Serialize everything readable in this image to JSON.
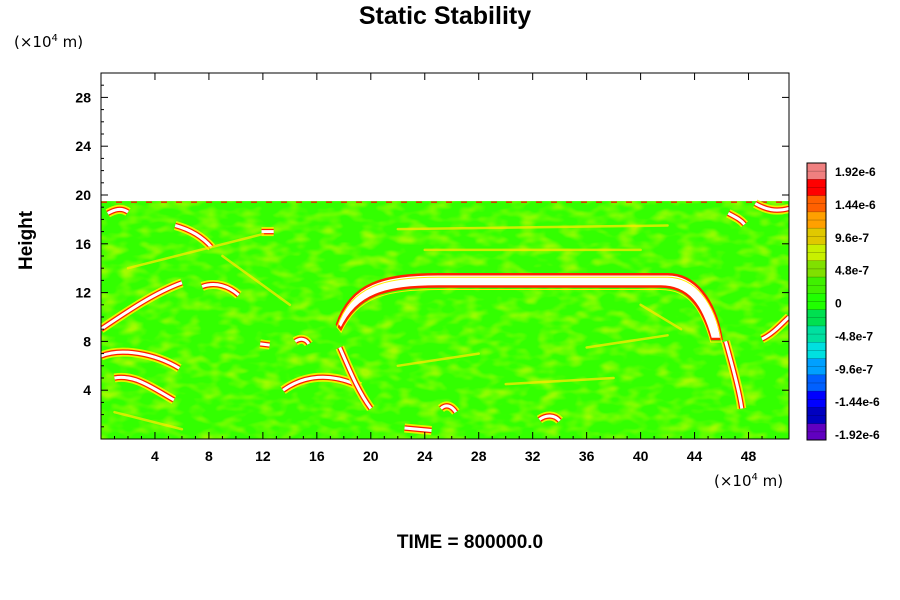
{
  "chart_data": {
    "type": "heatmap",
    "title": "Static Stability",
    "xlabel": "",
    "ylabel": "Height",
    "x_unit": "(×10",
    "x_unit_exp": "4",
    "x_unit_tail": " m)",
    "y_unit": "(×10",
    "y_unit_exp": "4",
    "y_unit_tail": " m)",
    "xlim": [
      0,
      51
    ],
    "ylim": [
      0,
      30
    ],
    "x_ticks": [
      4,
      8,
      12,
      16,
      20,
      24,
      28,
      32,
      36,
      40,
      44,
      48
    ],
    "y_ticks": [
      4,
      8,
      12,
      16,
      20,
      24,
      28
    ],
    "field_top": 19.5,
    "colorbar": {
      "labels": [
        "1.92e-6",
        "1.44e-6",
        "9.6e-7",
        "4.8e-7",
        "0",
        "-4.8e-7",
        "-9.6e-7",
        "-1.44e-6",
        "-1.92e-6"
      ],
      "colors": [
        "#f08080",
        "#ff0000",
        "#ff6000",
        "#ffa000",
        "#e0c800",
        "#c8f000",
        "#80e000",
        "#40f000",
        "#20ff00",
        "#00e050",
        "#00e0a0",
        "#00e0e0",
        "#00a0ff",
        "#0060ff",
        "#0000ff",
        "#0000c0",
        "#6000c0"
      ]
    },
    "features": [
      {
        "name": "upper stable band",
        "x_start": 17.5,
        "x_end": 46,
        "y_top": 13.5,
        "y_bottom": 12.5
      },
      {
        "name": "left stable layer",
        "x_start": 0,
        "x_end": 5,
        "y_top": 7.5,
        "y_bottom": 5.5
      }
    ],
    "time_label": "TIME = 800000.0"
  }
}
